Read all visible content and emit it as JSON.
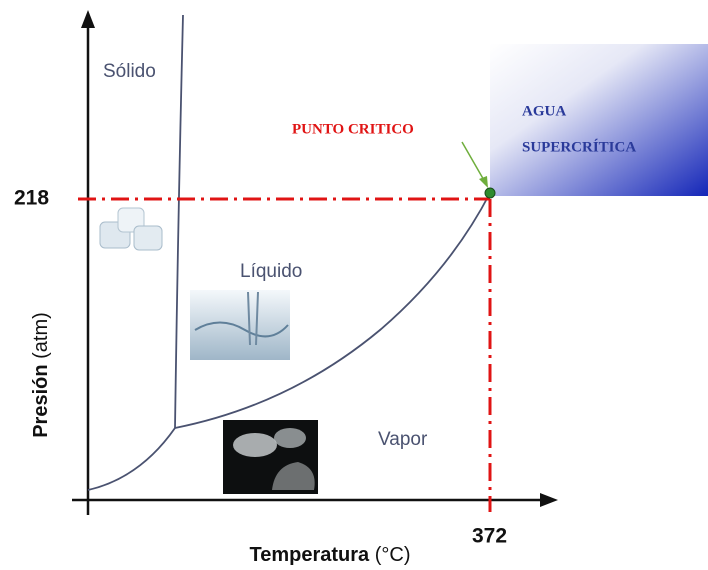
{
  "regions": [
    "Sólido",
    "Líquido",
    "Vapor"
  ],
  "critical_point": {
    "label": "PUNTO CRITICO",
    "pressure": 218,
    "temperature": 372
  },
  "supercritical": [
    "AGUA",
    "SUPERCRÍTICA"
  ],
  "y_axis": {
    "name": "Presión",
    "unit": "(atm)"
  },
  "x_axis": {
    "name": "Temperatura",
    "unit": "(°C)"
  }
}
